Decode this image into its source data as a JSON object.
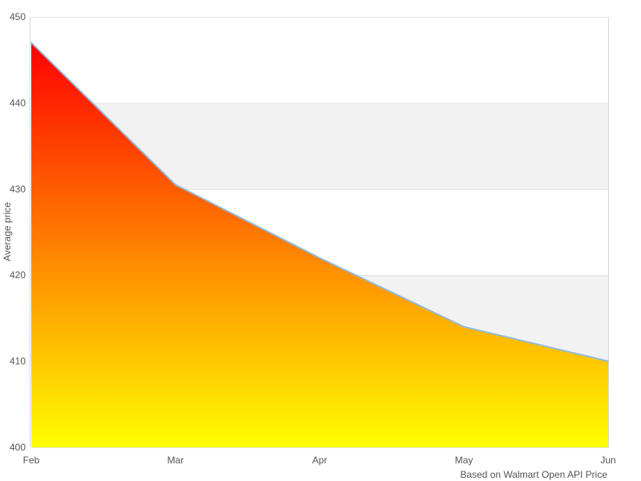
{
  "chart_data": {
    "type": "area",
    "categories": [
      "Feb",
      "Mar",
      "Apr",
      "May",
      "Jun"
    ],
    "values": [
      447,
      430.5,
      422,
      414,
      410
    ],
    "series_name": "Average price",
    "title": "",
    "xlabel": "",
    "ylabel": "Average price",
    "caption": "Based on Walmart Open API Price",
    "ylim": [
      400,
      450
    ],
    "yticks": [
      400,
      410,
      420,
      430,
      440,
      450
    ],
    "grid": "horizontal gridlines every 10 units with alternating light-gray bands (430-440 and 410-420 shaded)",
    "legend_position": "none",
    "colors": {
      "area_gradient_top": "#ff0000",
      "area_gradient_bottom": "#ffff00",
      "line": "#92badb",
      "band": "#f2f2f2",
      "gridline": "#e2e2e2",
      "axis_line": "#d6d6d6",
      "text": "#555555",
      "background": "#ffffff"
    }
  }
}
